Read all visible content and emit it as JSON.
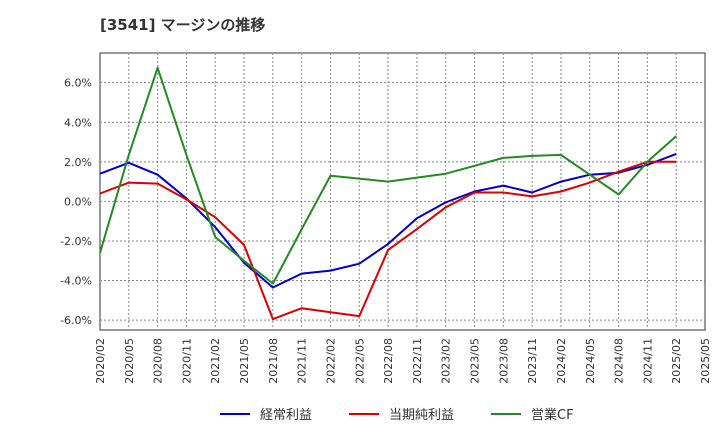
{
  "chart_data": {
    "type": "line",
    "title": "[3541]  マージンの推移",
    "x": [
      "2020/02",
      "2020/05",
      "2020/08",
      "2020/11",
      "2021/02",
      "2021/05",
      "2021/08",
      "2021/11",
      "2022/02",
      "2022/05",
      "2022/08",
      "2022/11",
      "2023/02",
      "2023/05",
      "2023/08",
      "2023/11",
      "2024/02",
      "2024/05",
      "2024/08",
      "2024/11",
      "2025/02",
      "2025/05"
    ],
    "ylim": [
      -6.5,
      7.5
    ],
    "y_ticks": [
      -6.0,
      -4.0,
      -2.0,
      0.0,
      2.0,
      4.0,
      6.0
    ],
    "y_tick_labels": [
      "-6.0%",
      "-4.0%",
      "-2.0%",
      "0.0%",
      "2.0%",
      "4.0%",
      "6.0%"
    ],
    "grid": true,
    "legend_position": "bottom",
    "series": [
      {
        "name": "経常利益",
        "color": "#0000cc",
        "values": [
          1.4,
          1.95,
          1.35,
          0.15,
          -1.3,
          -3.1,
          -4.35,
          -3.65,
          -3.5,
          -3.15,
          -2.15,
          -0.85,
          -0.05,
          0.5,
          0.8,
          0.45,
          1.0,
          1.35,
          1.45,
          1.85,
          2.4,
          null
        ]
      },
      {
        "name": "当期純利益",
        "color": "#dd0000",
        "values": [
          0.4,
          0.95,
          0.9,
          0.1,
          -0.8,
          -2.2,
          -5.95,
          -5.4,
          -5.6,
          -5.8,
          -2.45,
          -1.4,
          -0.3,
          0.45,
          0.45,
          0.25,
          0.5,
          0.95,
          1.5,
          2.0,
          2.0,
          null
        ]
      },
      {
        "name": "営業CF",
        "color": "#228b22",
        "values": [
          -2.6,
          2.35,
          6.75,
          2.35,
          -1.8,
          -3.0,
          -4.15,
          -1.4,
          1.3,
          1.15,
          1.0,
          1.2,
          1.4,
          1.8,
          2.2,
          2.3,
          2.35,
          1.35,
          0.35,
          2.0,
          3.3,
          null
        ]
      }
    ]
  }
}
